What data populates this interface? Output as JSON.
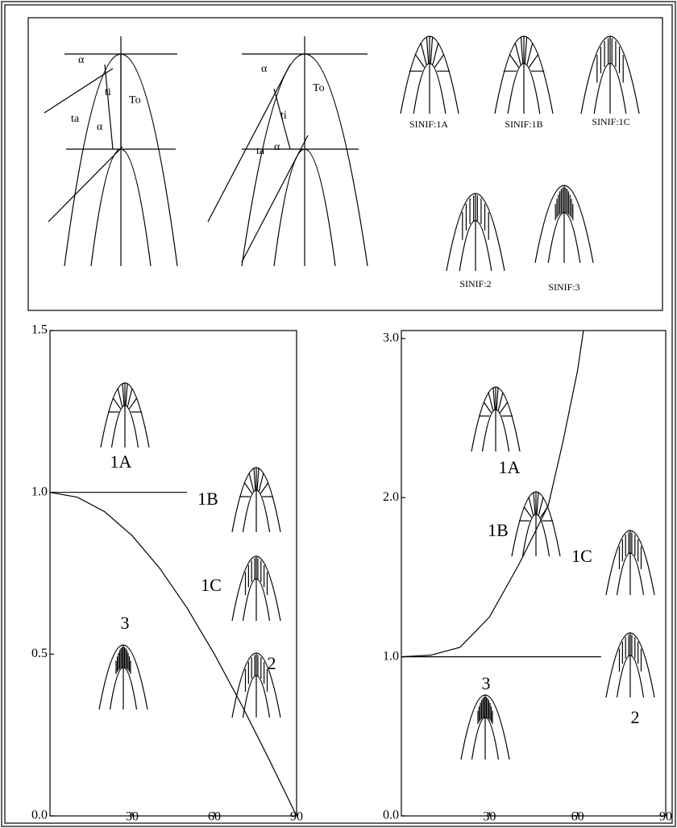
{
  "diagram": {
    "labels": [
      "α",
      "ti",
      "To",
      "ta",
      "α",
      "α",
      "To",
      "ti",
      "ta",
      "α"
    ],
    "classes": [
      "SINIF:1A",
      "SINIF:1B",
      "SINIF:1C",
      "SINIF:2",
      "SINIF:3"
    ]
  },
  "chart_data": [
    {
      "type": "line",
      "x_range": true,
      "xlim": [
        0,
        90
      ],
      "ylim": [
        0,
        1.5
      ],
      "xticks": [
        30,
        60,
        90
      ],
      "yticks": [
        {
          "value": 0,
          "label": "0.0"
        },
        {
          "value": 0.5,
          "label": "0.5"
        },
        {
          "value": 1,
          "label": "1.0"
        },
        {
          "value": 1.5,
          "label": "1.5"
        }
      ],
      "series": [
        {
          "x": [
            0,
            50
          ],
          "values": [
            1,
            1
          ],
          "color": "#000000"
        },
        {
          "x": [
            0,
            10,
            20,
            30,
            40,
            50,
            60,
            70,
            80,
            90
          ],
          "values": [
            1,
            0.985,
            0.94,
            0.866,
            0.766,
            0.643,
            0.5,
            0.342,
            0.174,
            0
          ],
          "color": "#000000"
        }
      ],
      "annotations": [
        "1A",
        "1B",
        "1C",
        "3",
        "2"
      ]
    },
    {
      "type": "line",
      "xlim": [
        0,
        90
      ],
      "ylim": [
        0,
        3.05
      ],
      "xticks": [
        30,
        60,
        90
      ],
      "yticks": [
        {
          "value": 0,
          "label": "0.0"
        },
        {
          "value": 1,
          "label": "1.0"
        },
        {
          "value": 2,
          "label": "2.0"
        },
        {
          "value": 3,
          "label": "3.0"
        }
      ],
      "series": [
        {
          "x": [
            0,
            68
          ],
          "values": [
            1,
            1
          ],
          "color": "#000000"
        },
        {
          "x": [
            0,
            10,
            20,
            30,
            40,
            50,
            55,
            60,
            62
          ],
          "values": [
            1,
            1.01,
            1.06,
            1.25,
            1.58,
            1.95,
            2.35,
            2.8,
            3.05
          ],
          "color": "#000000"
        }
      ],
      "annotations": [
        "1A",
        "1B",
        "1C",
        "3",
        "2"
      ]
    }
  ]
}
